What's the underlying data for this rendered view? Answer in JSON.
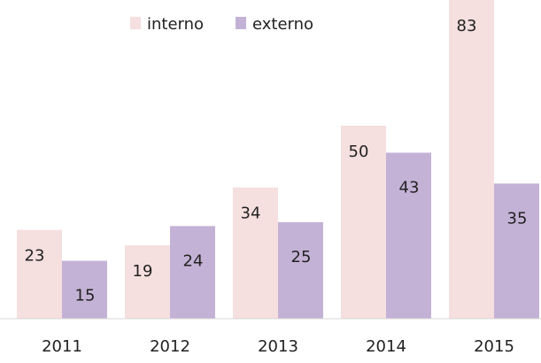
{
  "chart_data": {
    "type": "bar",
    "categories": [
      "2011",
      "2012",
      "2013",
      "2014",
      "2015"
    ],
    "series": [
      {
        "name": "interno",
        "color": "#f5dfdf",
        "values": [
          23,
          19,
          34,
          50,
          83
        ]
      },
      {
        "name": "externo",
        "color": "#c4b2d6",
        "values": [
          15,
          24,
          25,
          43,
          35
        ]
      }
    ],
    "ylim": [
      0,
      83
    ],
    "legend": "top"
  }
}
